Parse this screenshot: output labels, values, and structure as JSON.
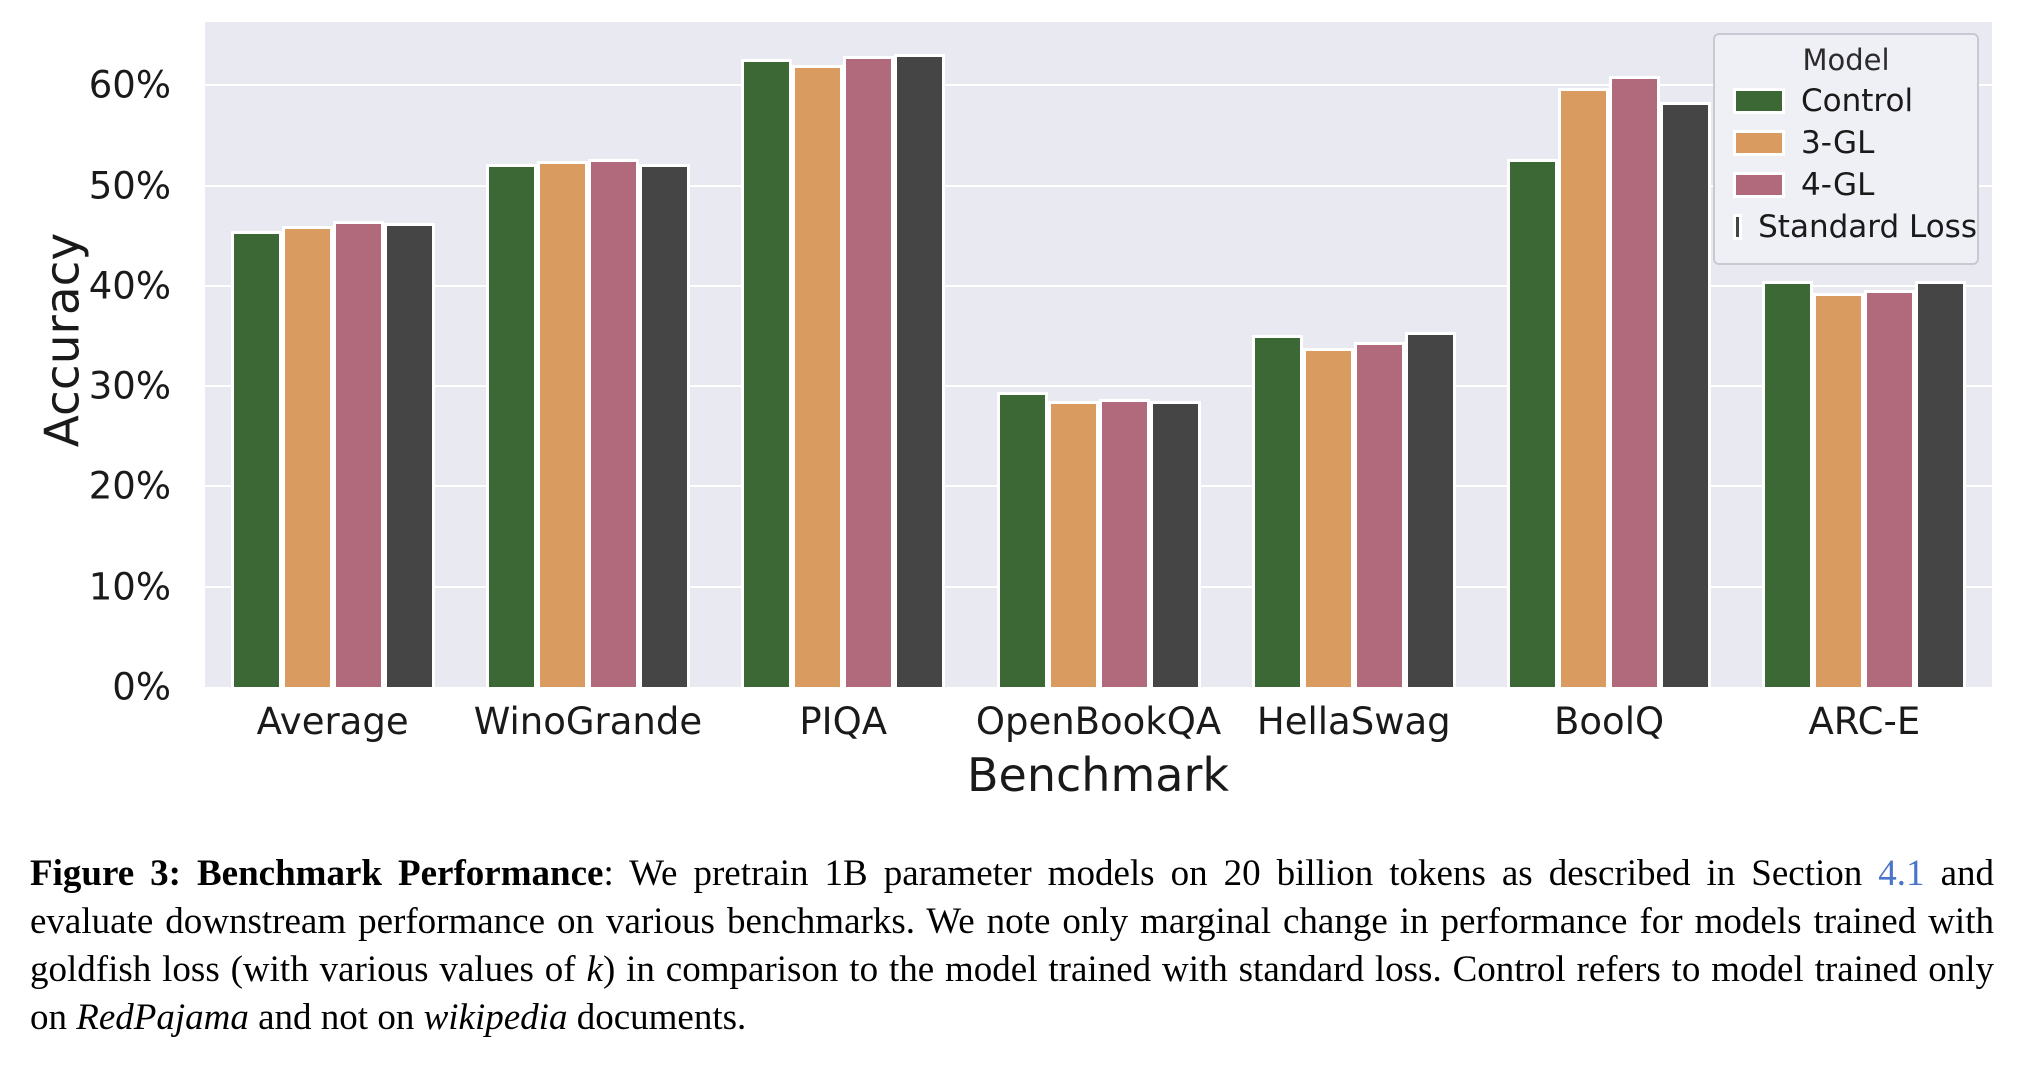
{
  "chart_data": {
    "type": "bar",
    "title": "",
    "xlabel": "Benchmark",
    "ylabel": "Accuracy",
    "categories": [
      "Average",
      "WinoGrande",
      "PIQA",
      "OpenBookQA",
      "HellaSwag",
      "BoolQ",
      "ARC-E"
    ],
    "series": [
      {
        "name": "Control",
        "color": "#3B6834",
        "values": [
          45.5,
          52.1,
          62.6,
          29.4,
          35.1,
          52.6,
          40.5
        ]
      },
      {
        "name": "3-GL",
        "color": "#D99B5F",
        "values": [
          46.0,
          52.4,
          62.0,
          28.5,
          33.8,
          59.7,
          39.3
        ]
      },
      {
        "name": "4-GL",
        "color": "#B16A7B",
        "values": [
          46.5,
          52.6,
          62.9,
          28.7,
          34.4,
          60.9,
          39.6
        ]
      },
      {
        "name": "Standard Loss",
        "color": "#454545",
        "values": [
          46.3,
          52.1,
          63.1,
          28.5,
          35.4,
          58.3,
          40.5
        ]
      }
    ],
    "ylim": [
      0,
      66.3
    ],
    "yticks": [
      {
        "value": 0,
        "label": "0%"
      },
      {
        "value": 10,
        "label": "10%"
      },
      {
        "value": 20,
        "label": "20%"
      },
      {
        "value": 30,
        "label": "30%"
      },
      {
        "value": 40,
        "label": "40%"
      },
      {
        "value": 50,
        "label": "50%"
      },
      {
        "value": 60,
        "label": "60%"
      }
    ],
    "legend_title": "Model",
    "legend_position": "upper right",
    "grid": true,
    "plot_background": "#E9E9F2",
    "gridline_color": "#ffffff"
  },
  "caption": {
    "bold_lead": "Figure 3: Benchmark Performance",
    "segments": [
      {
        "text": ": We pretrain 1B parameter models on 20 billion tokens as described in Section ",
        "style": "normal"
      },
      {
        "text": "4.1",
        "style": "link"
      },
      {
        "text": " and evaluate downstream performance on various benchmarks. We note only marginal change in performance for models trained with goldfish loss (with various values of ",
        "style": "normal"
      },
      {
        "text": "k",
        "style": "italic"
      },
      {
        "text": ") in comparison to the model trained with standard loss. Control refers to model trained only on ",
        "style": "normal"
      },
      {
        "text": "RedPajama",
        "style": "italic"
      },
      {
        "text": " and not on ",
        "style": "normal"
      },
      {
        "text": "wikipedia",
        "style": "italic"
      },
      {
        "text": " documents.",
        "style": "normal"
      }
    ]
  }
}
